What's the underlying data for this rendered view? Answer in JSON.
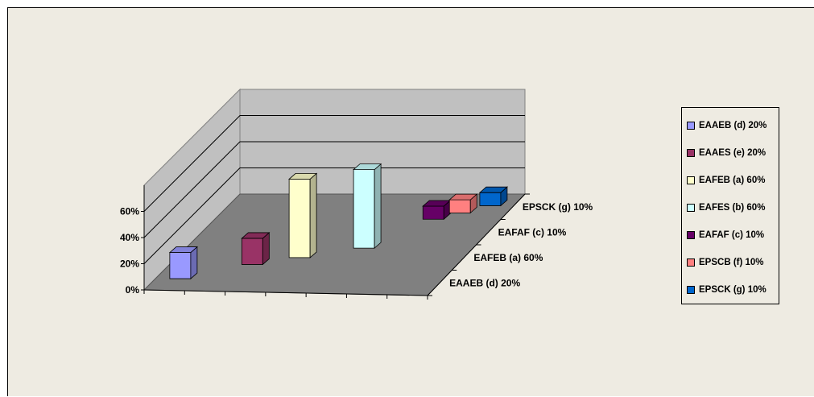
{
  "chart_data": {
    "type": "bar",
    "subtype": "3d-column-stacked-depth",
    "categories": [
      "EAAEB (d) 20%",
      "EAFEB (a) 60%",
      "EAFAF (c) 10%",
      "EPSCK (g) 10%"
    ],
    "series": [
      {
        "name": "EAAEB (d) 20%",
        "value": 20,
        "color": "#9999ff"
      },
      {
        "name": "EAAES (e) 20%",
        "value": 20,
        "color": "#993366"
      },
      {
        "name": "EAFEB (a) 60%",
        "value": 60,
        "color": "#ffffcc"
      },
      {
        "name": "EAFES (b) 60%",
        "value": 60,
        "color": "#ccffff"
      },
      {
        "name": "EAFAF (c) 10%",
        "value": 10,
        "color": "#660066"
      },
      {
        "name": "EPSCB (f) 10%",
        "value": 10,
        "color": "#ff8080"
      },
      {
        "name": "EPSCK (g) 10%",
        "value": 10,
        "color": "#0066cc"
      }
    ],
    "y_ticks": [
      "0%",
      "20%",
      "40%",
      "60%"
    ],
    "ylim": [
      0,
      80
    ],
    "legend_position": "right",
    "grid": true,
    "colors": {
      "background": "#eeebe2",
      "floor": "#808080",
      "wall": "#c0c0c0"
    }
  }
}
